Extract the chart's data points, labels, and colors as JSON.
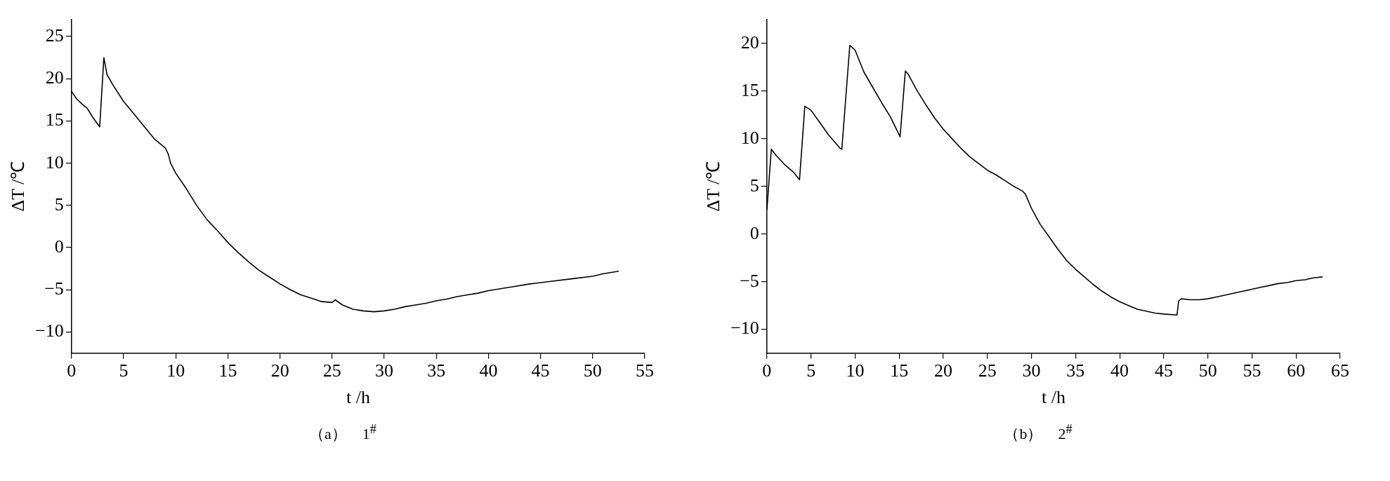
{
  "chart_data": [
    {
      "type": "line",
      "xlabel": "t /h",
      "ylabel": "ΔT /℃",
      "xlim": [
        0,
        55
      ],
      "xticks": [
        0,
        5,
        10,
        15,
        20,
        25,
        30,
        35,
        40,
        45,
        50,
        55
      ],
      "ylim": [
        -12.5,
        27
      ],
      "yticks": [
        -10,
        -5,
        0,
        5,
        10,
        15,
        20,
        25
      ],
      "grid": false,
      "legend": false,
      "marker": "none",
      "line_style": "solid",
      "annotations": [
        "（a）　1$^{#}$"
      ],
      "series": [
        {
          "color": "#000000",
          "x": [
            0,
            0.5,
            1,
            1.5,
            2,
            2.7,
            3.1,
            3.4,
            4,
            5,
            6,
            7,
            8,
            9,
            9.3,
            9.5,
            10,
            11,
            11.5,
            12,
            13,
            14,
            15,
            16,
            17,
            18,
            19,
            20,
            21,
            22,
            23,
            24,
            25,
            25.3,
            26,
            27,
            28,
            29,
            30,
            31,
            32,
            33,
            34,
            35,
            36,
            37,
            38,
            39,
            40,
            42,
            44,
            46,
            48,
            50,
            51,
            52.5
          ],
          "values": [
            18.5,
            17.6,
            17,
            16.5,
            15.5,
            14.3,
            22.5,
            20.5,
            19.2,
            17.3,
            15.8,
            14.3,
            12.8,
            11.8,
            11,
            10,
            8.8,
            7,
            6,
            5,
            3.3,
            2,
            0.6,
            -0.6,
            -1.7,
            -2.7,
            -3.5,
            -4.3,
            -5,
            -5.6,
            -6,
            -6.4,
            -6.5,
            -6.2,
            -6.8,
            -7.3,
            -7.5,
            -7.6,
            -7.5,
            -7.3,
            -7,
            -6.8,
            -6.6,
            -6.3,
            -6.1,
            -5.8,
            -5.6,
            -5.4,
            -5.1,
            -4.7,
            -4.3,
            -4,
            -3.7,
            -3.4,
            -3.1,
            -2.8
          ]
        }
      ]
    },
    {
      "type": "line",
      "xlabel": "t /h",
      "ylabel": "ΔT /℃",
      "xlim": [
        0,
        65
      ],
      "xticks": [
        0,
        5,
        10,
        15,
        20,
        25,
        30,
        35,
        40,
        45,
        50,
        55,
        60,
        65
      ],
      "ylim": [
        -12.5,
        22.5
      ],
      "yticks": [
        -10,
        -5,
        0,
        5,
        10,
        15,
        20
      ],
      "grid": false,
      "legend": false,
      "marker": "none",
      "line_style": "solid",
      "annotations": [
        "（b）　2$^{#}$"
      ],
      "series": [
        {
          "color": "#000000",
          "x": [
            0,
            0.5,
            1,
            2,
            3,
            3.7,
            4.3,
            5,
            6,
            7,
            8.3,
            8.5,
            9.4,
            10,
            11,
            12,
            13,
            14,
            15,
            15.1,
            15.7,
            16,
            17,
            18,
            19,
            20,
            21,
            22,
            23,
            24,
            25,
            26,
            27,
            28,
            29,
            29.3,
            30,
            31,
            32,
            33,
            34,
            35,
            36,
            37,
            38,
            39,
            40,
            41,
            42,
            43,
            44,
            45,
            46.5,
            46.7,
            47,
            48,
            49,
            50,
            51,
            52,
            53,
            54,
            55,
            56,
            57,
            58,
            59,
            60,
            61,
            62,
            63
          ],
          "values": [
            2.5,
            8.9,
            8.3,
            7.3,
            6.5,
            5.7,
            13.4,
            13,
            11.7,
            10.4,
            9,
            8.9,
            19.8,
            19.3,
            17,
            15.4,
            13.8,
            12.3,
            10.4,
            10.2,
            17.1,
            16.8,
            15.1,
            13.6,
            12.2,
            11,
            10,
            9,
            8.1,
            7.4,
            6.7,
            6.2,
            5.6,
            5,
            4.5,
            4.2,
            2.7,
            1,
            -0.3,
            -1.6,
            -2.8,
            -3.7,
            -4.5,
            -5.3,
            -6,
            -6.6,
            -7.1,
            -7.5,
            -7.9,
            -8.1,
            -8.3,
            -8.4,
            -8.5,
            -7,
            -6.8,
            -6.9,
            -6.9,
            -6.8,
            -6.6,
            -6.4,
            -6.2,
            -6,
            -5.8,
            -5.6,
            -5.4,
            -5.2,
            -5.1,
            -4.9,
            -4.8,
            -4.6,
            -4.5
          ]
        }
      ]
    }
  ]
}
